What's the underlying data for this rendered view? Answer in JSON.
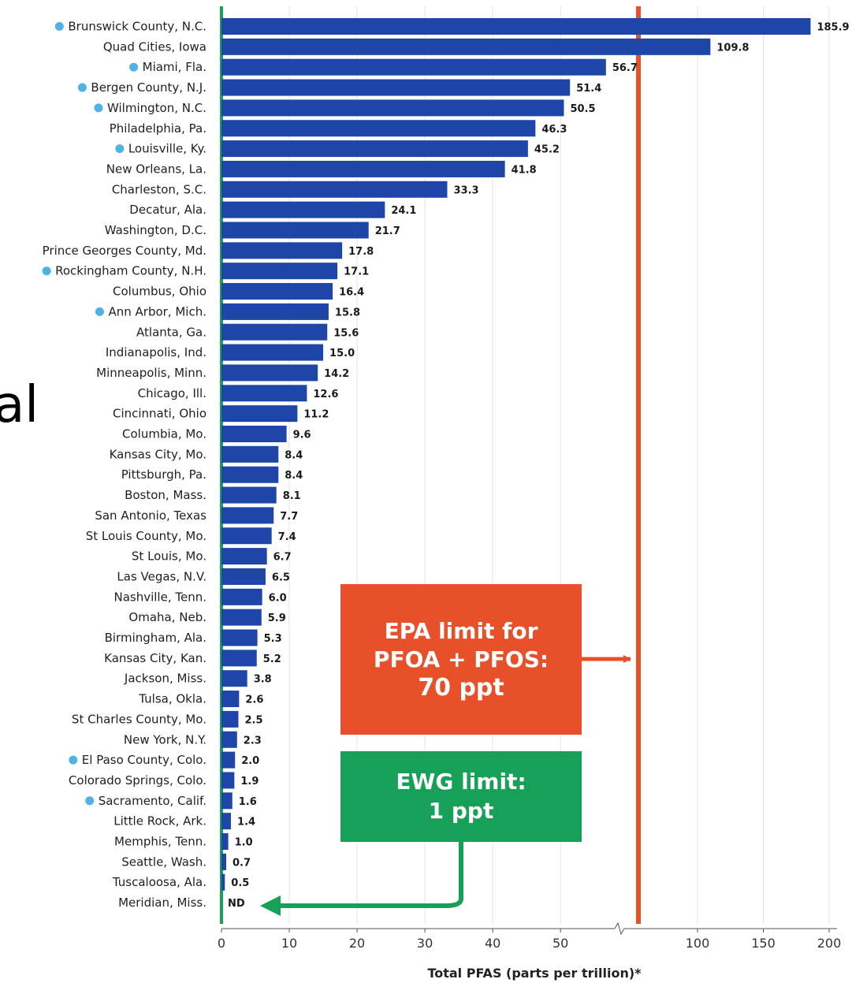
{
  "chart_data": {
    "type": "bar",
    "orientation": "horizontal",
    "categories": [
      "Brunswick County, N.C.",
      "Quad Cities, Iowa",
      "Miami, Fla.",
      "Bergen County, N.J.",
      "Wilmington, N.C.",
      "Philadelphia, Pa.",
      "Louisville, Ky.",
      "New Orleans, La.",
      "Charleston, S.C.",
      "Decatur, Ala.",
      "Washington, D.C.",
      "Prince Georges County, Md.",
      "Rockingham County, N.H.",
      "Columbus, Ohio",
      "Ann Arbor, Mich.",
      "Atlanta, Ga.",
      "Indianapolis, Ind.",
      "Minneapolis, Minn.",
      "Chicago, Ill.",
      "Cincinnati, Ohio",
      "Columbia, Mo.",
      "Kansas City, Mo.",
      "Pittsburgh, Pa.",
      "Boston, Mass.",
      "San Antonio, Texas",
      "St Louis County, Mo.",
      "St Louis, Mo.",
      "Las Vegas, N.V.",
      "Nashville, Tenn.",
      "Omaha, Neb.",
      "Birmingham, Ala.",
      "Kansas City, Kan.",
      "Jackson, Miss.",
      "Tulsa, Okla.",
      "St Charles County, Mo.",
      "New York, N.Y.",
      "El Paso County, Colo.",
      "Colorado Springs, Colo.",
      "Sacramento, Calif.",
      "Little Rock, Ark.",
      "Memphis, Tenn.",
      "Seattle, Wash.",
      "Tuscaloosa, Ala.",
      "Meridian, Miss."
    ],
    "values": [
      185.9,
      109.8,
      56.7,
      51.4,
      50.5,
      46.3,
      45.2,
      41.8,
      33.3,
      24.1,
      21.7,
      17.8,
      17.1,
      16.4,
      15.8,
      15.6,
      15.0,
      14.2,
      12.6,
      11.2,
      9.6,
      8.4,
      8.4,
      8.1,
      7.7,
      7.4,
      6.7,
      6.5,
      6.0,
      5.9,
      5.3,
      5.2,
      3.8,
      2.6,
      2.5,
      2.3,
      2.0,
      1.9,
      1.6,
      1.4,
      1.0,
      0.7,
      0.5,
      0
    ],
    "value_labels": [
      "185.9",
      "109.8",
      "56.7",
      "51.4",
      "50.5",
      "46.3",
      "45.2",
      "41.8",
      "33.3",
      "24.1",
      "21.7",
      "17.8",
      "17.1",
      "16.4",
      "15.8",
      "15.6",
      "15.0",
      "14.2",
      "12.6",
      "11.2",
      "9.6",
      "8.4",
      "8.4",
      "8.1",
      "7.7",
      "7.4",
      "6.7",
      "6.5",
      "6.0",
      "5.9",
      "5.3",
      "5.2",
      "3.8",
      "2.6",
      "2.5",
      "2.3",
      "2.0",
      "1.9",
      "1.6",
      "1.4",
      "1.0",
      "0.7",
      "0.5",
      "ND"
    ],
    "marked_categories": [
      "Brunswick County, N.C.",
      "Miami, Fla.",
      "Bergen County, N.J.",
      "Wilmington, N.C.",
      "Louisville, Ky.",
      "Rockingham County, N.H.",
      "Ann Arbor, Mich.",
      "El Paso County, Colo.",
      "Sacramento, Calif."
    ],
    "x_axis": {
      "label": "Total PFAS (parts per trillion)*",
      "scale": "broken",
      "segment_1": {
        "range": [
          0,
          58
        ],
        "ticks": [
          0,
          10,
          20,
          30,
          40,
          50
        ]
      },
      "segment_2": {
        "range": [
          58,
          210
        ],
        "ticks": [
          100,
          150,
          200
        ]
      },
      "tick_labels": [
        "0",
        "10",
        "20",
        "30",
        "40",
        "50",
        "100",
        "150",
        "200"
      ]
    },
    "grid": true,
    "reference_lines": [
      {
        "value": 70,
        "color": "#e8502a"
      },
      {
        "value": 0,
        "color": "#17a058"
      }
    ],
    "annotations": [
      {
        "lines": [
          "EPA limit for",
          "PFOA + PFOS:",
          "70 ppt"
        ],
        "color": "#e8502a",
        "points_to_value": 70
      },
      {
        "lines": [
          "EWG limit:",
          "1 ppt"
        ],
        "color": "#17a058",
        "points_to_category": "Meridian, Miss."
      }
    ],
    "colors": {
      "bar": "#1e46a8",
      "dot": "#4fb3e6",
      "grid": "#e4e4e4"
    }
  },
  "background_fragment": "al"
}
